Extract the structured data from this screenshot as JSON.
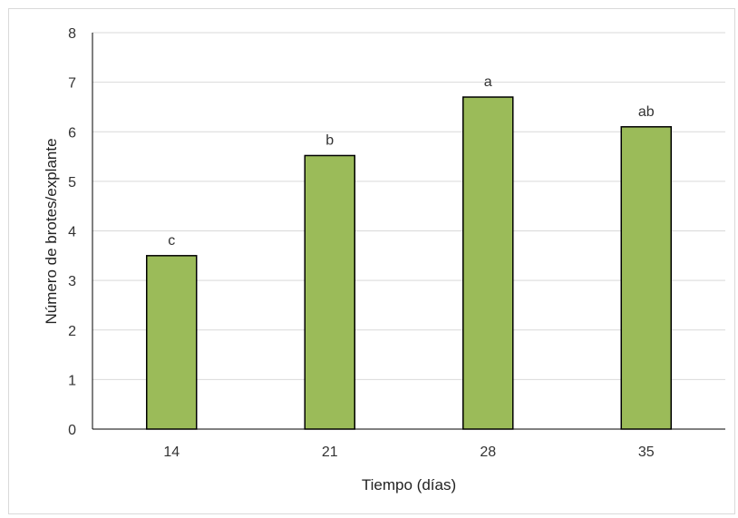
{
  "chart_data": {
    "type": "bar",
    "title": "",
    "xlabel": "Tiempo  (días)",
    "ylabel": "Número de brotes/explante",
    "categories": [
      "14",
      "21",
      "28",
      "35"
    ],
    "values": [
      3.5,
      5.52,
      6.7,
      6.1
    ],
    "data_labels": [
      "c",
      "b",
      "a",
      "ab"
    ],
    "ylim": [
      0,
      8
    ],
    "yticks": [
      "0",
      "1",
      "2",
      "3",
      "4",
      "5",
      "6",
      "7",
      "8"
    ],
    "grid": true,
    "legend": "none",
    "bar_color": "#9bbb59",
    "bar_edge_color": "#000000",
    "grid_color": "#d9d9d9"
  }
}
